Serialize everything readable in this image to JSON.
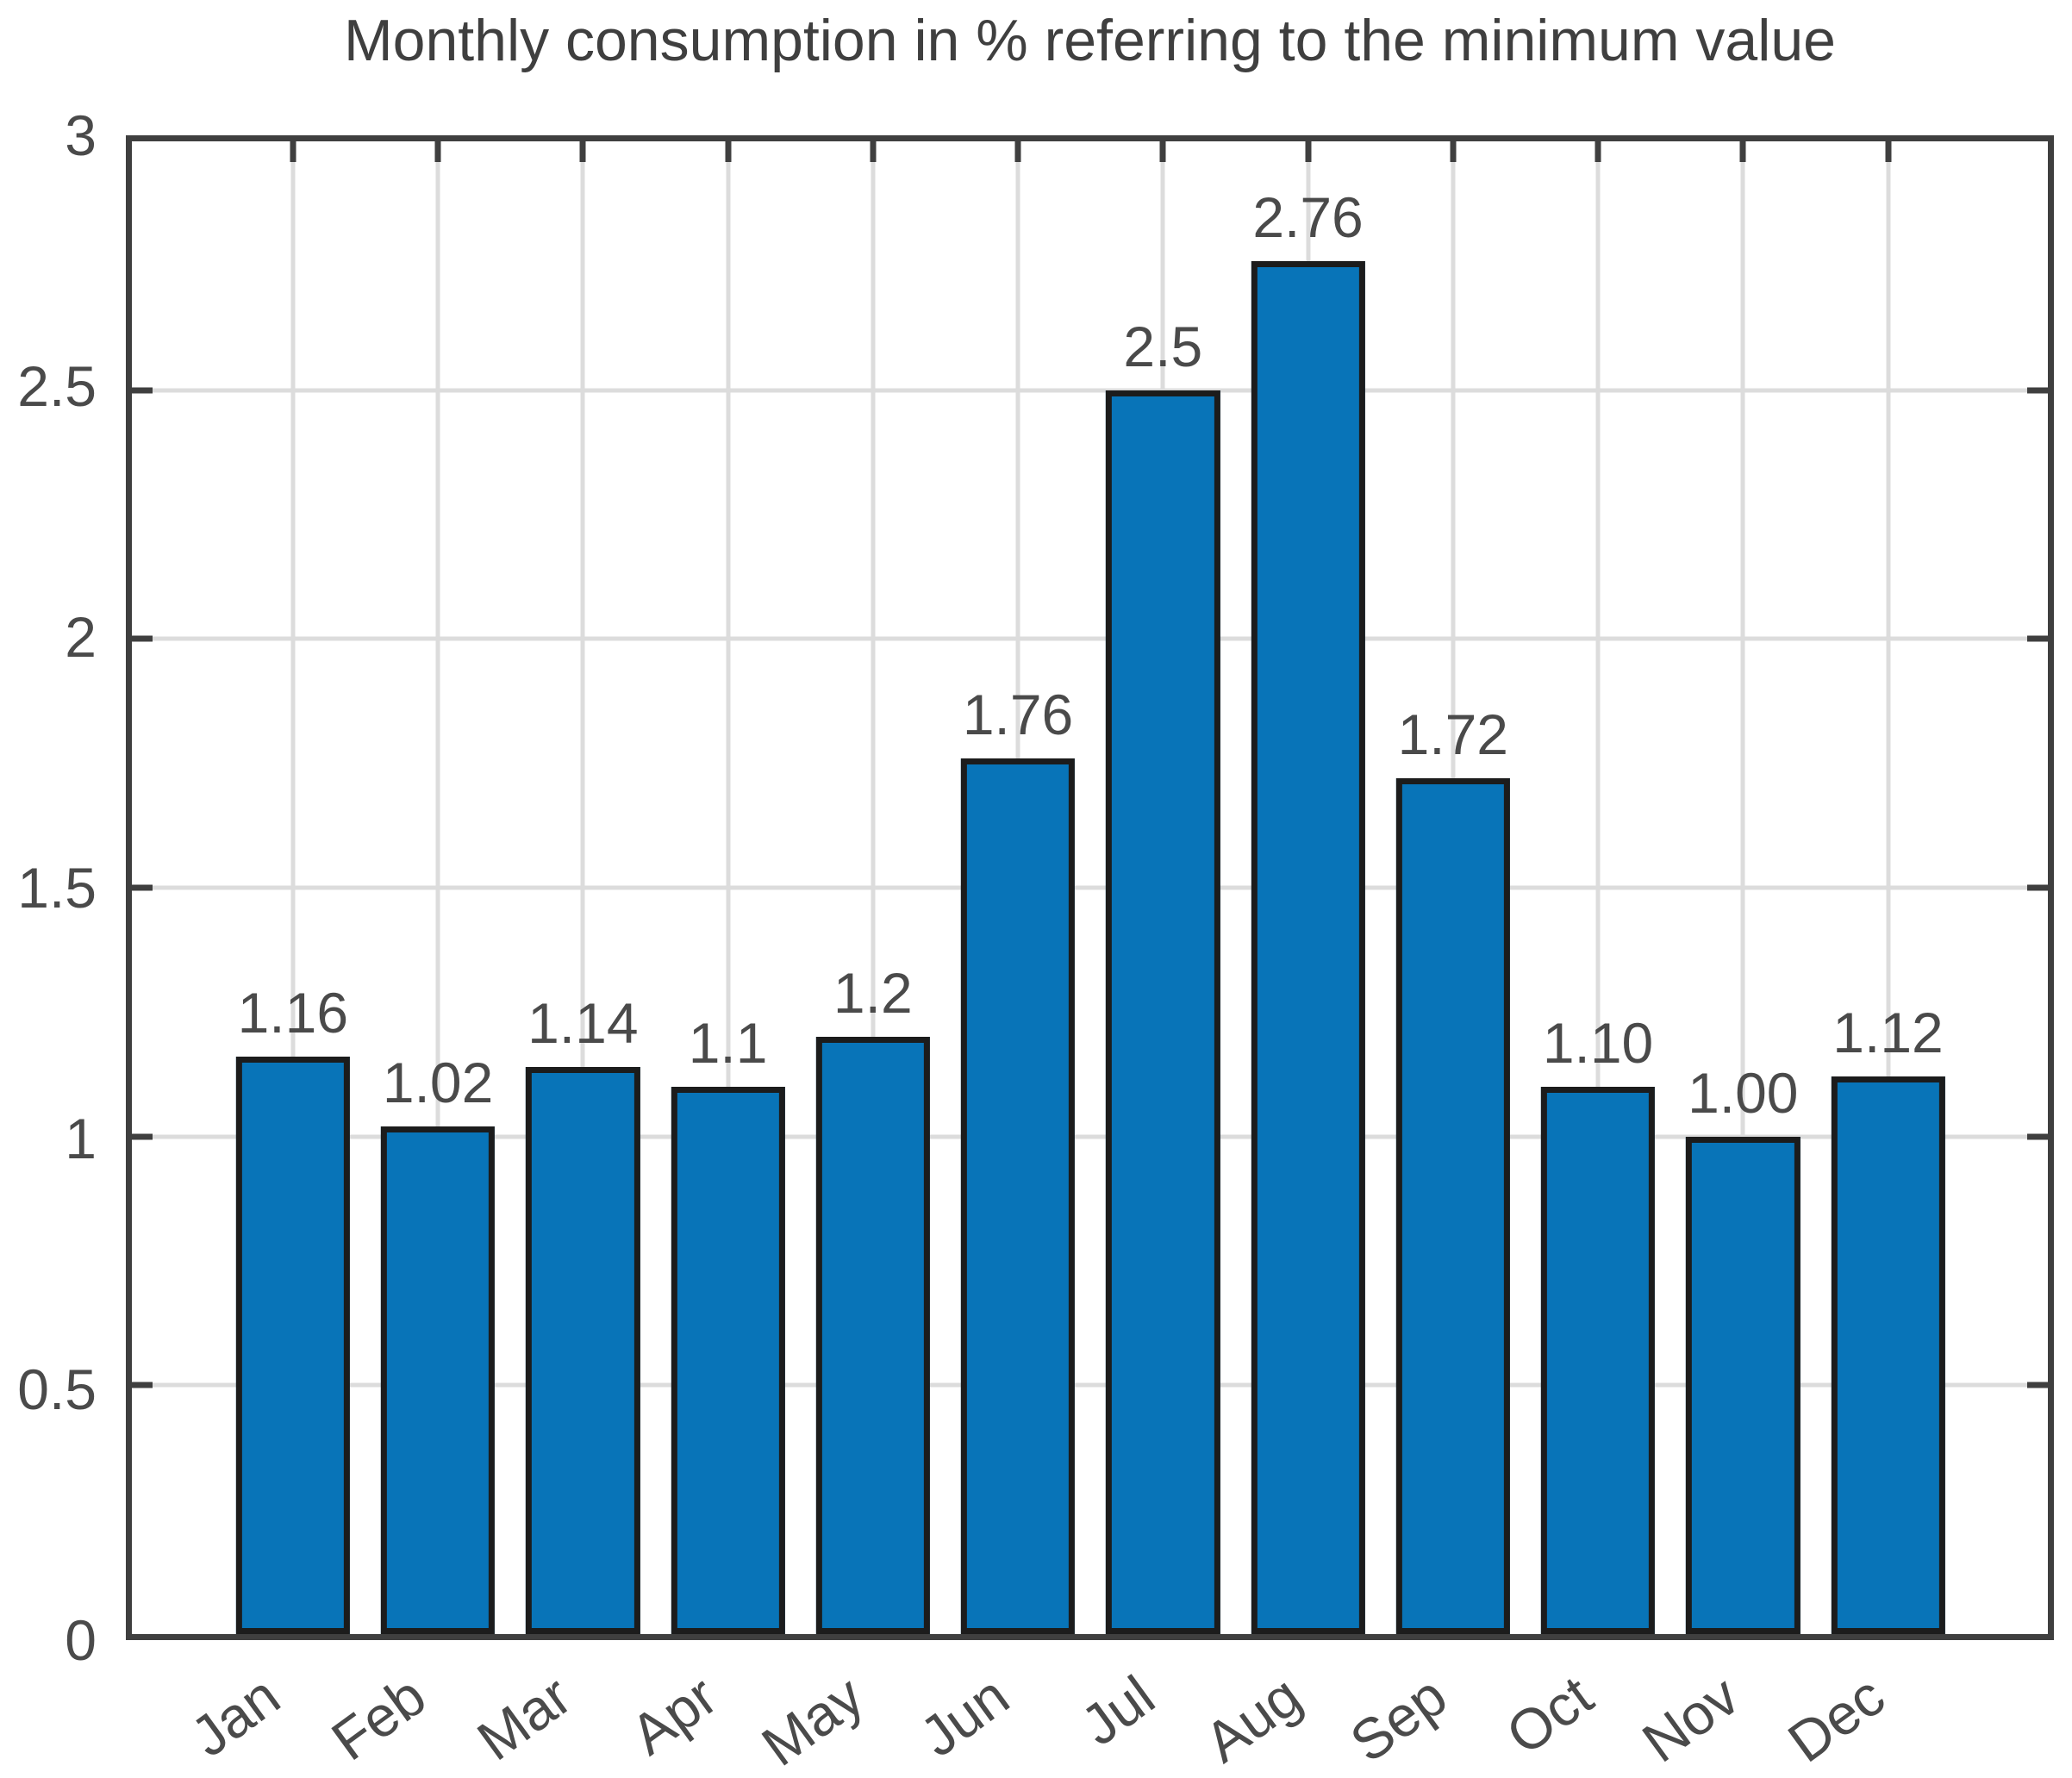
{
  "title": "Monthly consumption in % referring to the minimum value",
  "chart_data": {
    "type": "bar",
    "title": "Monthly consumption in % referring to the minimum value",
    "categories": [
      "Jan",
      "Feb",
      "Mar",
      "Apr",
      "May",
      "Jun",
      "Jul",
      "Aug",
      "Sep",
      "Oct",
      "Nov",
      "Dec"
    ],
    "values": [
      1.16,
      1.02,
      1.14,
      1.1,
      1.2,
      1.76,
      2.5,
      2.76,
      1.72,
      1.1,
      1.0,
      1.12
    ],
    "value_labels": [
      "1.16",
      "1.02",
      "1.14",
      "1.1",
      "1.2",
      "1.76",
      "2.5",
      "2.76",
      "1.72",
      "1.10",
      "1.00",
      "1.12"
    ],
    "xlabel": "",
    "ylabel": "",
    "ylim": [
      0,
      3
    ],
    "yticks": [
      0,
      0.5,
      1,
      1.5,
      2,
      2.5,
      3
    ],
    "ytick_labels": [
      "0",
      "0.5",
      "1",
      "1.5",
      "2",
      "2.5",
      "3"
    ],
    "xtick_rotation_deg": 36,
    "grid": "on",
    "legend": "none",
    "bar_color": "#0874B8",
    "bar_edge_color": "#1C1C1C",
    "grid_color": "#DCDCDC",
    "axis_color": "#3F3F3F",
    "text_color": "#4A4A4A"
  }
}
